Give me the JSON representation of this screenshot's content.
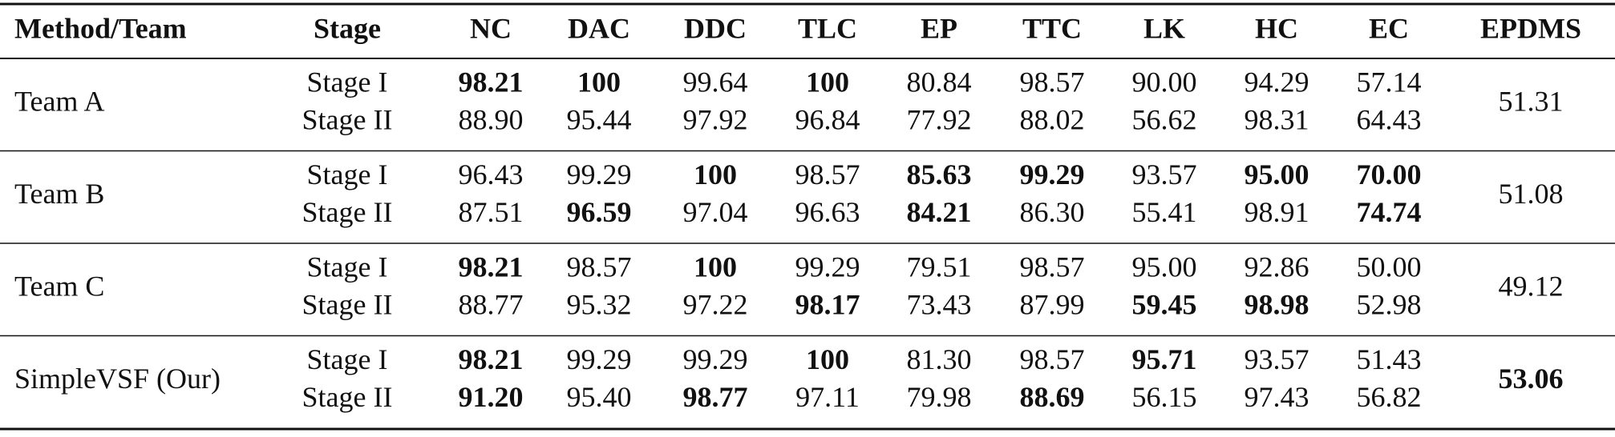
{
  "table": {
    "header": [
      "Method/Team",
      "Stage",
      "NC",
      "DAC",
      "DDC",
      "TLC",
      "EP",
      "TTC",
      "LK",
      "HC",
      "EC",
      "EPDMS"
    ],
    "groups": [
      {
        "team": "Team A",
        "epdms": "51.31",
        "epdms_bold": false,
        "rows": [
          {
            "stage": "Stage I",
            "values": [
              "98.21",
              "100",
              "99.64",
              "100",
              "80.84",
              "98.57",
              "90.00",
              "94.29",
              "57.14"
            ],
            "bold": [
              0,
              1,
              3
            ]
          },
          {
            "stage": "Stage II",
            "values": [
              "88.90",
              "95.44",
              "97.92",
              "96.84",
              "77.92",
              "88.02",
              "56.62",
              "98.31",
              "64.43"
            ],
            "bold": []
          }
        ]
      },
      {
        "team": "Team B",
        "epdms": "51.08",
        "epdms_bold": false,
        "rows": [
          {
            "stage": "Stage I",
            "values": [
              "96.43",
              "99.29",
              "100",
              "98.57",
              "85.63",
              "99.29",
              "93.57",
              "95.00",
              "70.00"
            ],
            "bold": [
              2,
              4,
              5,
              7,
              8
            ]
          },
          {
            "stage": "Stage II",
            "values": [
              "87.51",
              "96.59",
              "97.04",
              "96.63",
              "84.21",
              "86.30",
              "55.41",
              "98.91",
              "74.74"
            ],
            "bold": [
              1,
              4,
              8
            ]
          }
        ]
      },
      {
        "team": "Team C",
        "epdms": "49.12",
        "epdms_bold": false,
        "rows": [
          {
            "stage": "Stage I",
            "values": [
              "98.21",
              "98.57",
              "100",
              "99.29",
              "79.51",
              "98.57",
              "95.00",
              "92.86",
              "50.00"
            ],
            "bold": [
              0,
              2
            ]
          },
          {
            "stage": "Stage II",
            "values": [
              "88.77",
              "95.32",
              "97.22",
              "98.17",
              "73.43",
              "87.99",
              "59.45",
              "98.98",
              "52.98"
            ],
            "bold": [
              3,
              6,
              7
            ]
          }
        ]
      },
      {
        "team": "SimpleVSF (Our)",
        "epdms": "53.06",
        "epdms_bold": true,
        "rows": [
          {
            "stage": "Stage I",
            "values": [
              "98.21",
              "99.29",
              "99.29",
              "100",
              "81.30",
              "98.57",
              "95.71",
              "93.57",
              "51.43"
            ],
            "bold": [
              0,
              3,
              6
            ]
          },
          {
            "stage": "Stage II",
            "values": [
              "91.20",
              "95.40",
              "98.77",
              "97.11",
              "79.98",
              "88.69",
              "56.15",
              "97.43",
              "56.82"
            ],
            "bold": [
              0,
              2,
              5
            ]
          }
        ]
      }
    ]
  }
}
